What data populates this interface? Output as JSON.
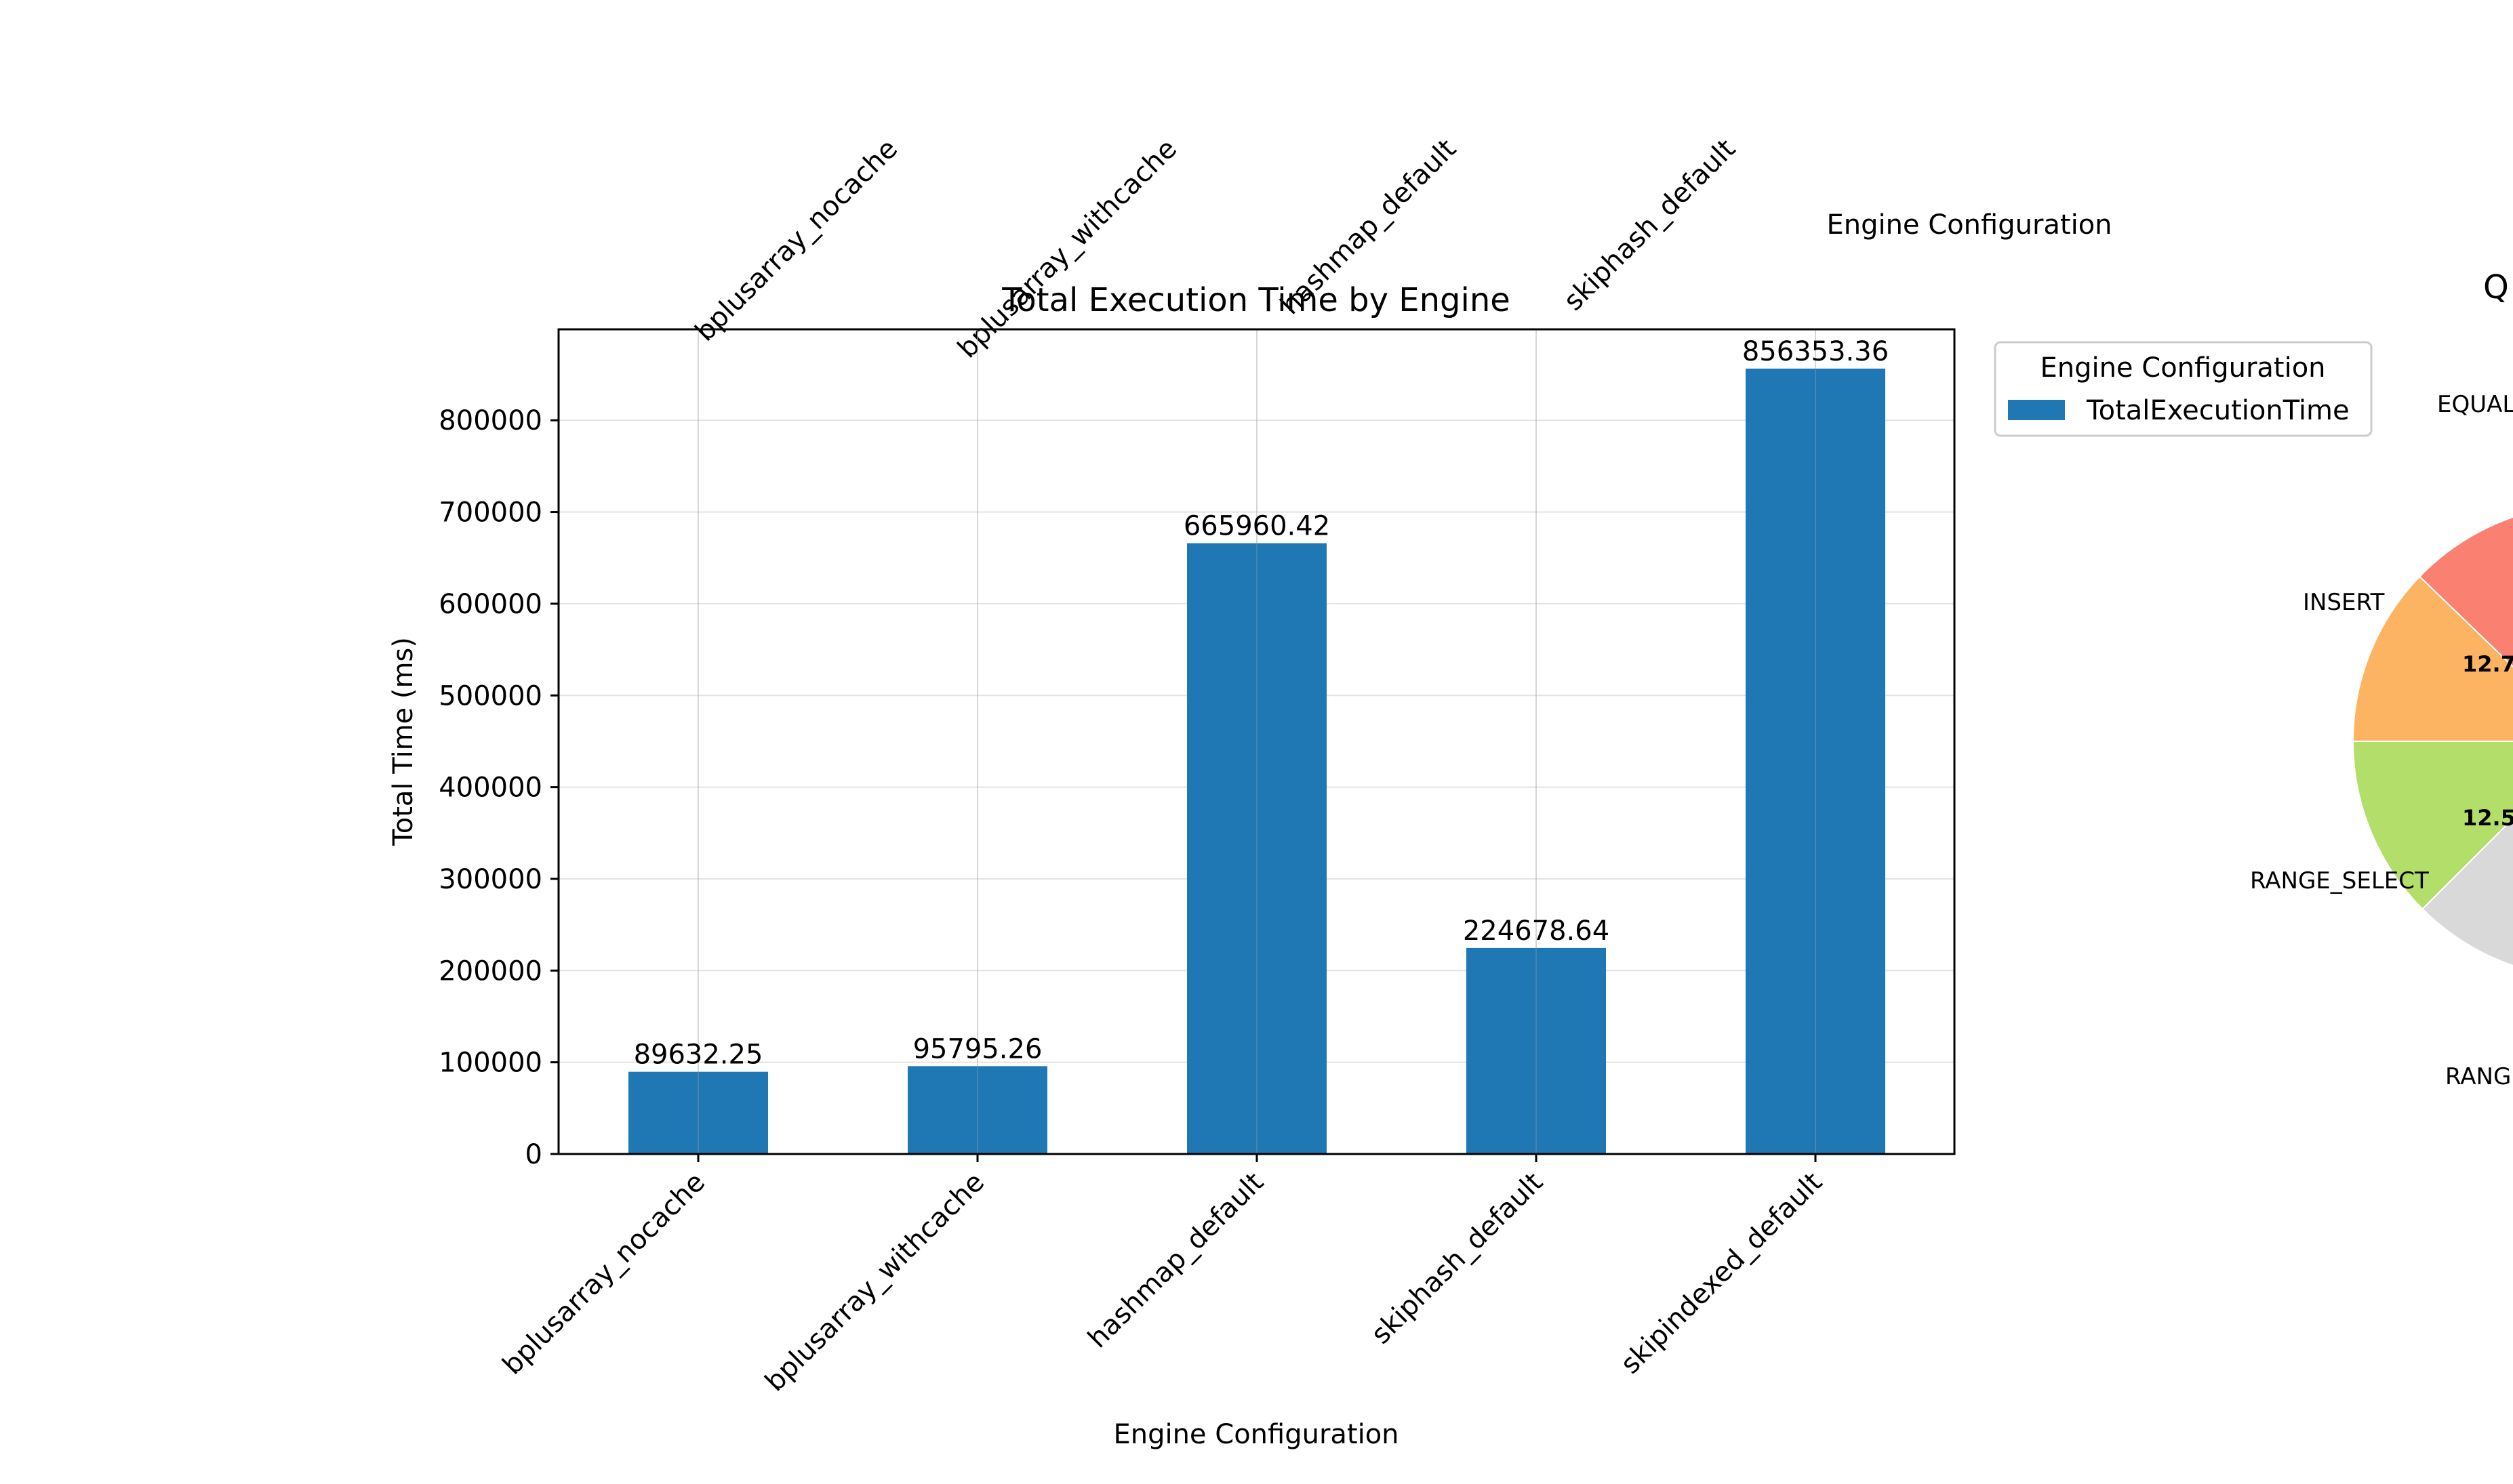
{
  "chart_data": [
    {
      "type": "bar",
      "title": "Total Execution Time by Engine",
      "xlabel": "Engine Configuration",
      "ylabel": "Total Time (ms)",
      "categories": [
        "bplusarray_nocache",
        "bplusarray_withcache",
        "hashmap_default",
        "skiphash_default",
        "skipindexed_default"
      ],
      "series": [
        {
          "name": "TotalExecutionTime",
          "values": [
            89632.25,
            95795.26,
            665960.42,
            224678.64,
            856353.36
          ]
        }
      ],
      "data_labels": [
        "89632.25",
        "95795.26",
        "665960.42",
        "224678.64",
        "856353.36"
      ],
      "ylim": [
        0,
        899171
      ],
      "yticks": [
        0,
        100000,
        200000,
        300000,
        400000,
        500000,
        600000,
        700000,
        800000
      ],
      "ytick_labels": [
        "0",
        "100000",
        "200000",
        "300000",
        "400000",
        "500000",
        "600000",
        "700000",
        "800000"
      ],
      "grid": true,
      "legend_title": "Engine Configuration",
      "legend_position": "outside upper-right",
      "color": "#1f77b4"
    },
    {
      "type": "bar",
      "partial": "cut off at top edge (only x tick labels and x-axis label visible)",
      "xlabel": "Engine Configuration",
      "visible_tick_labels": [
        "bplusarray_nocache",
        "bplusarray_withcache",
        "hashmap_default",
        "skiphash_default"
      ]
    },
    {
      "type": "pie",
      "partial": "cut off at right edge",
      "title_fragment": "Q",
      "labels": [
        "EQUAL",
        "INSERT",
        "RANGE_SELECT",
        "RANG"
      ],
      "visible_pct_fragments": [
        "12.7",
        "12.5"
      ],
      "colors": [
        "#fa8072",
        "#fdb462",
        "#b3de69",
        "#d9d9d9"
      ]
    }
  ]
}
